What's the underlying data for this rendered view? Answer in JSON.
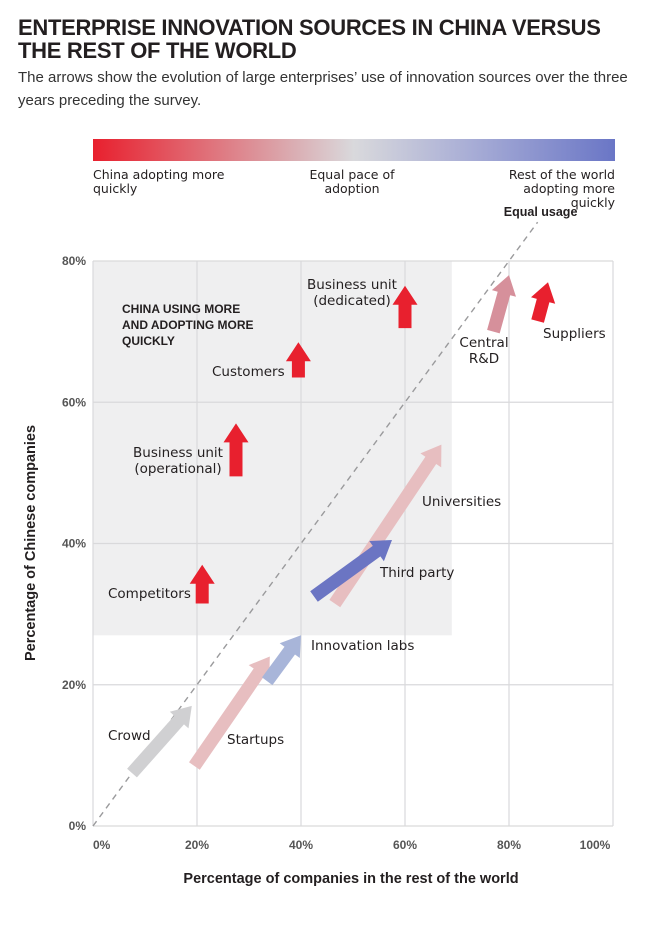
{
  "title": "ENTERPRISE INNOVATION SOURCES IN CHINA VERSUS THE REST OF THE WORLD",
  "subtitle": "The arrows show the evolution of large enterprises’ use of innovation sources over the three years preceding the survey.",
  "colors": {
    "china_faster": "#e8202e",
    "equal_pace": "#d9d9dc",
    "rest_faster": "#6a76c6",
    "shaded_region": "#efeff0"
  },
  "legend": {
    "left": "China adopting more quickly",
    "middle": "Equal pace of adoption",
    "right": "Rest of the world adopting more quickly"
  },
  "chart_data": {
    "type": "scatter",
    "xlabel": "Percentage of companies in the rest of the world",
    "ylabel": "Percentage of Chinese companies",
    "xlim": [
      0,
      100
    ],
    "ylim": [
      0,
      80
    ],
    "x_ticks": [
      "0%",
      "20%",
      "40%",
      "60%",
      "80%",
      "100%"
    ],
    "y_ticks": [
      "0%",
      "20%",
      "40%",
      "60%",
      "80%"
    ],
    "x_tick_values": [
      0,
      20,
      40,
      60,
      80,
      100
    ],
    "y_tick_values": [
      0,
      20,
      40,
      60,
      80
    ],
    "grid": true,
    "diagonal_label": "Equal usage",
    "region_label": "CHINA USING MORE AND ADOPTING MORE QUICKLY",
    "region": {
      "x": [
        0,
        69
      ],
      "y": [
        27,
        80
      ]
    },
    "series": [
      {
        "label": "Business unit (dedicated)",
        "from": [
          60,
          70.5
        ],
        "to": [
          60,
          76.5
        ],
        "color": "#e8202e"
      },
      {
        "label": "Central R&D",
        "from": [
          77,
          70
        ],
        "to": [
          80,
          78
        ],
        "color": "#d6909b"
      },
      {
        "label": "Suppliers",
        "from": [
          85.5,
          71.5
        ],
        "to": [
          87.5,
          77
        ],
        "color": "#e8202e"
      },
      {
        "label": "Customers",
        "from": [
          39.5,
          63.5
        ],
        "to": [
          39.5,
          68.5
        ],
        "color": "#e8202e"
      },
      {
        "label": "Business unit (operational)",
        "from": [
          27.5,
          49.5
        ],
        "to": [
          27.5,
          57
        ],
        "color": "#e8202e"
      },
      {
        "label": "Universities",
        "from": [
          46.5,
          31.5
        ],
        "to": [
          67,
          54
        ],
        "color": "#e7bec0"
      },
      {
        "label": "Third party",
        "from": [
          42.5,
          32.5
        ],
        "to": [
          57.5,
          40.5
        ],
        "color": "#6b75c3"
      },
      {
        "label": "Competitors",
        "from": [
          21,
          31.5
        ],
        "to": [
          21,
          37
        ],
        "color": "#e8202e"
      },
      {
        "label": "Innovation labs",
        "from": [
          33.5,
          20.5
        ],
        "to": [
          40,
          27
        ],
        "color": "#a8b5d9"
      },
      {
        "label": "Crowd",
        "from": [
          7.5,
          7.5
        ],
        "to": [
          19,
          17
        ],
        "color": "#d0d0d2"
      },
      {
        "label": "Startups",
        "from": [
          19.5,
          8.5
        ],
        "to": [
          34,
          24
        ],
        "color": "#e7bec0"
      }
    ]
  }
}
